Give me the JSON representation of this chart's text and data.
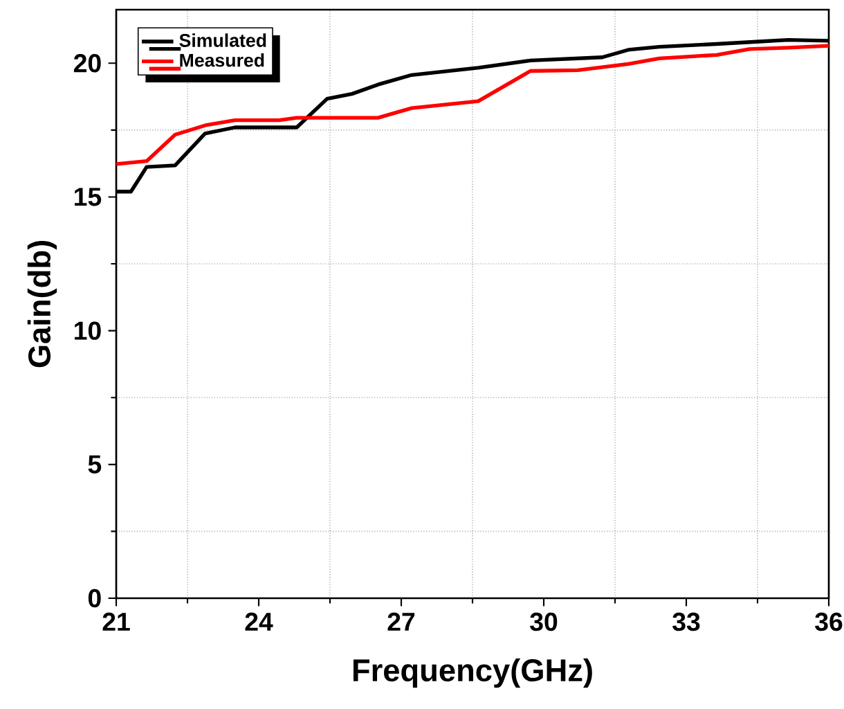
{
  "chart_data": {
    "type": "line",
    "xlabel": "Frequency(GHz)",
    "ylabel": "Gain(db)",
    "xlim": [
      21,
      36
    ],
    "xticks": [
      21,
      24,
      27,
      30,
      33,
      36
    ],
    "ylim": [
      0,
      22
    ],
    "yticks": [
      0,
      5,
      10,
      15,
      20
    ],
    "grid": true,
    "legend": "top left",
    "line_style": "solid",
    "series": [
      {
        "name": "Simulated",
        "color": "#000000",
        "x": [
          21.0,
          21.31,
          21.64,
          22.24,
          22.87,
          23.5,
          24.8,
          25.44,
          25.96,
          26.51,
          27.22,
          28.62,
          29.72,
          31.23,
          31.78,
          32.43,
          33.64,
          34.54,
          35.15,
          36.0
        ],
        "values": [
          15.2,
          15.2,
          16.12,
          16.18,
          17.37,
          17.6,
          17.6,
          18.67,
          18.85,
          19.2,
          19.56,
          19.83,
          20.1,
          20.22,
          20.5,
          20.61,
          20.72,
          20.81,
          20.87,
          20.84
        ]
      },
      {
        "name": "Measured",
        "color": "#ff0000",
        "x": [
          21.0,
          21.64,
          22.24,
          22.9,
          23.5,
          24.43,
          24.8,
          25.81,
          26.51,
          27.22,
          28.62,
          29.72,
          30.72,
          31.78,
          32.43,
          33.64,
          34.33,
          35.15,
          36.0
        ],
        "values": [
          16.23,
          16.34,
          17.33,
          17.69,
          17.87,
          17.87,
          17.96,
          17.96,
          17.96,
          18.32,
          18.58,
          19.71,
          19.74,
          19.97,
          20.18,
          20.31,
          20.53,
          20.58,
          20.65
        ]
      }
    ]
  }
}
